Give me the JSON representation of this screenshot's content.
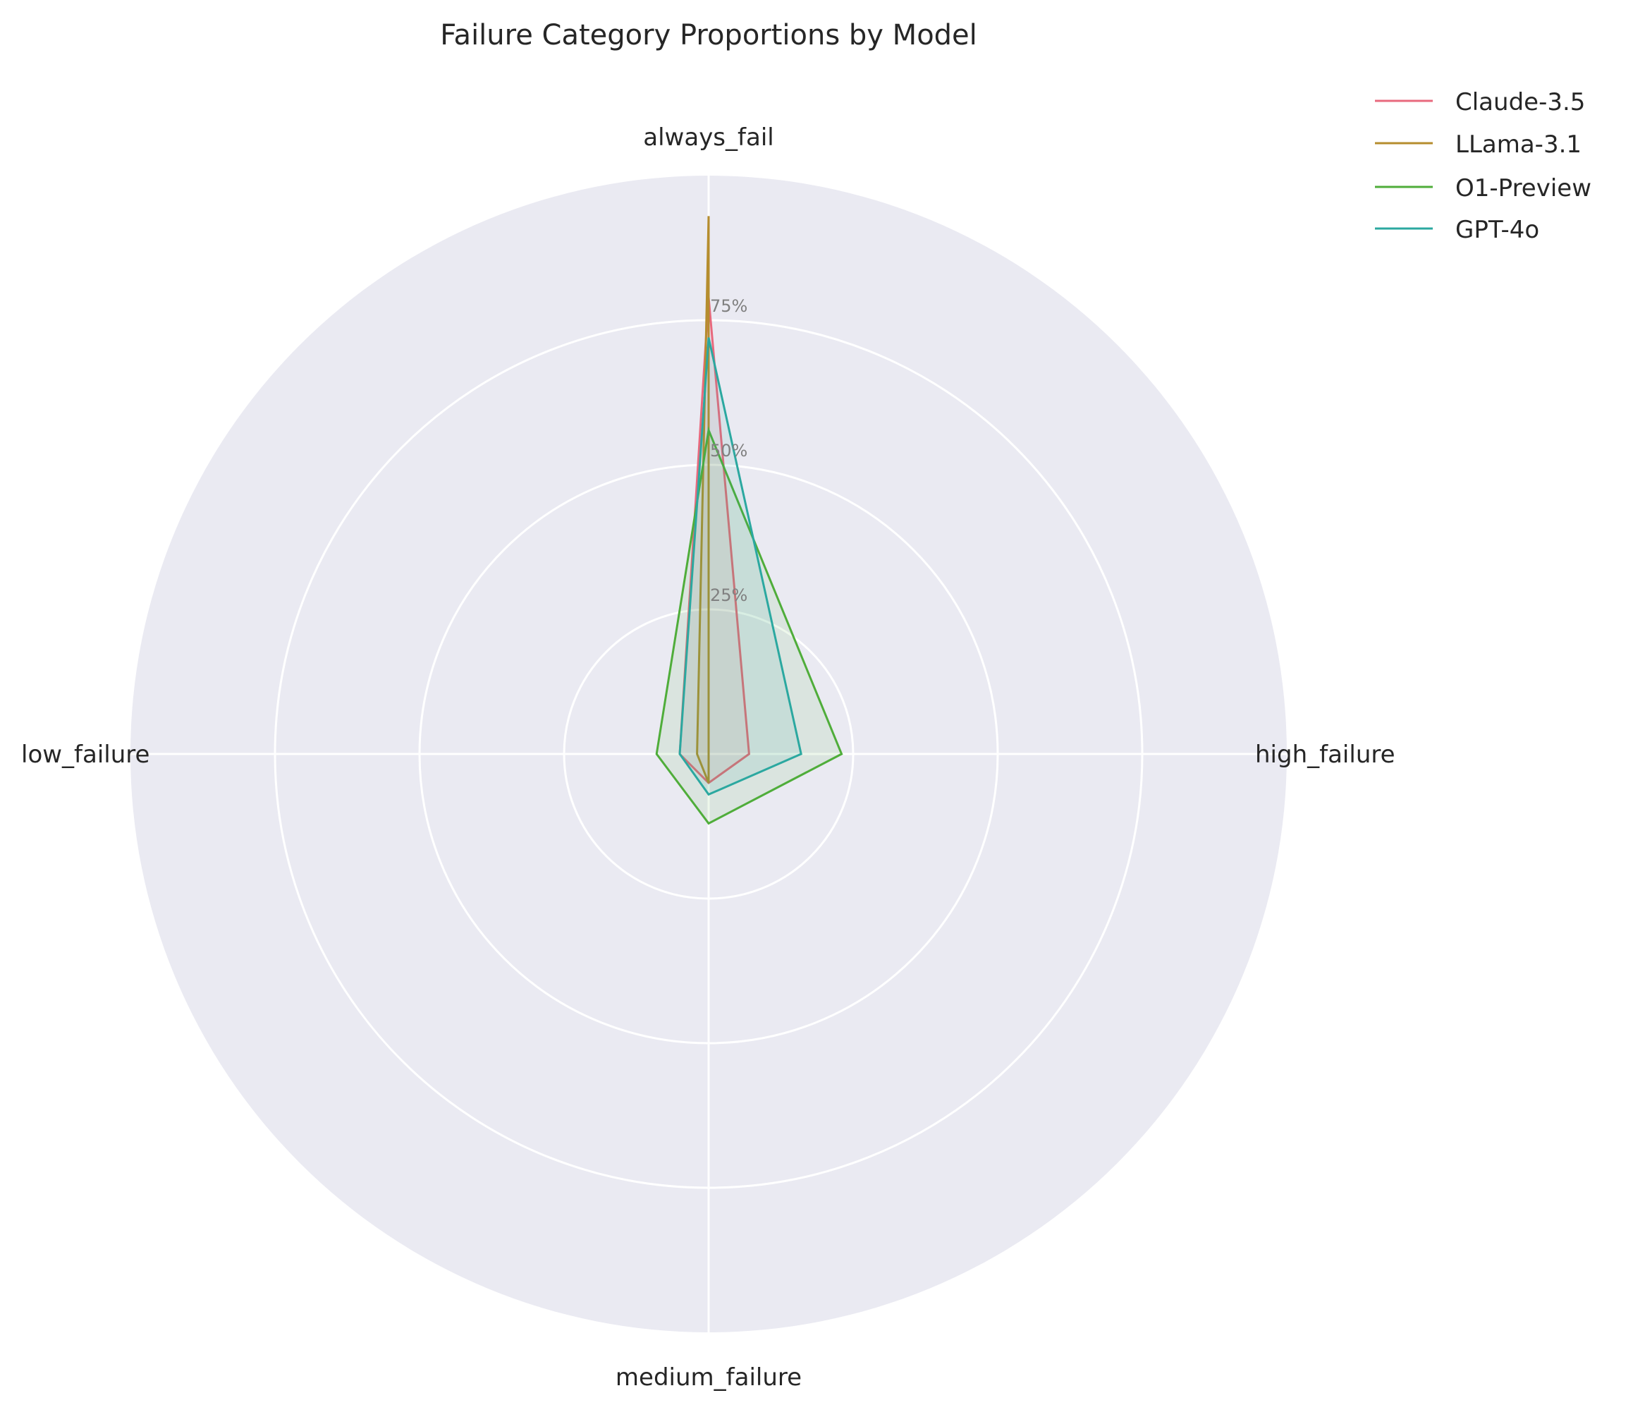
{
  "chart_data": {
    "type": "radar",
    "title": "Failure Category Proportions by Model",
    "axes": [
      "always_fail",
      "high_failure",
      "medium_failure",
      "low_failure"
    ],
    "radial_ticks": [
      25,
      50,
      75
    ],
    "radial_tick_labels": [
      "25%",
      "50%",
      "75%"
    ],
    "rlim": [
      0,
      100
    ],
    "grid": true,
    "legend_position": "top-right",
    "series": [
      {
        "name": "Claude-3.5",
        "color": "#e8697d",
        "values": [
          79,
          7,
          5,
          5
        ]
      },
      {
        "name": "LLama-3.1",
        "color": "#b58d2e",
        "values": [
          93,
          0,
          5,
          2
        ]
      },
      {
        "name": "O1-Preview",
        "color": "#4fad3a",
        "values": [
          56,
          23,
          12,
          9
        ]
      },
      {
        "name": "GPT-4o",
        "color": "#2ba8a0",
        "values": [
          72,
          16,
          7,
          5
        ]
      }
    ]
  }
}
